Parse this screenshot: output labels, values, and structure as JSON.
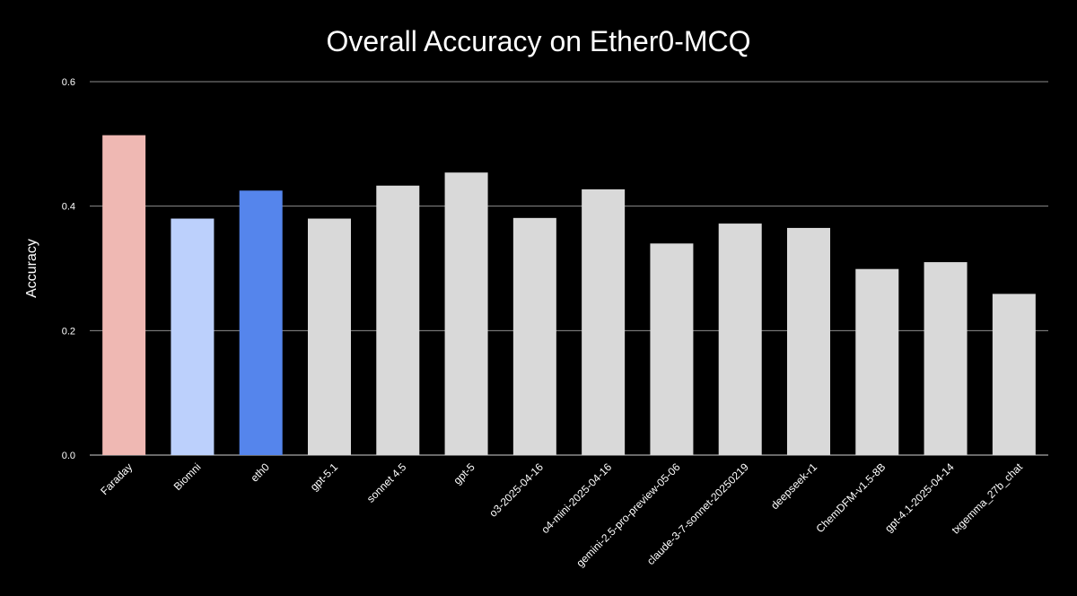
{
  "chart_data": {
    "type": "bar",
    "title": "Overall Accuracy on Ether0-MCQ",
    "xlabel": "",
    "ylabel": "Accuracy",
    "ylim": [
      0,
      0.6
    ],
    "yticks": [
      0.0,
      0.2,
      0.4,
      0.6
    ],
    "ytick_labels": [
      "0.0",
      "0.2",
      "0.4",
      "0.6"
    ],
    "grid": true,
    "legend": "none",
    "categories": [
      "Faraday",
      "Biomni",
      "eth0",
      "gpt-5.1",
      "sonnet 4.5",
      "gpt-5",
      "o3-2025-04-16",
      "o4-mini-2025-04-16",
      "gemini-2.5-pro-preview-05-06",
      "claude-3-7-sonnet-20250219",
      "deepseek-r1",
      "ChemDFM-v1.5-8B",
      "gpt-4.1-2025-04-14",
      "txgemma_27b_chat"
    ],
    "values": [
      0.514,
      0.38,
      0.425,
      0.38,
      0.433,
      0.454,
      0.381,
      0.427,
      0.34,
      0.372,
      0.365,
      0.299,
      0.31,
      0.259
    ],
    "colors": [
      "#efb8b3",
      "#bcd0fc",
      "#5585ec",
      "#d9d9d9",
      "#d9d9d9",
      "#d9d9d9",
      "#d9d9d9",
      "#d9d9d9",
      "#d9d9d9",
      "#d9d9d9",
      "#d9d9d9",
      "#d9d9d9",
      "#d9d9d9",
      "#d9d9d9"
    ]
  }
}
